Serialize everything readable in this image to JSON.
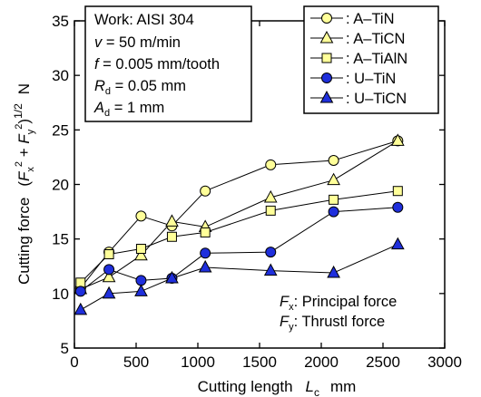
{
  "chart_data": {
    "type": "line",
    "xlabel": {
      "main": "Cutting length",
      "var": "L",
      "sub": "c",
      "unit": "mm"
    },
    "ylabel": {
      "main": "Cutting force",
      "expr_open": "(",
      "F1": "F",
      "sub1": "x",
      "sup1": "2",
      "plus": " + ",
      "F2": "F",
      "sub2": "y",
      "sup2": "2",
      "expr_close": ")",
      "exp": "1/2",
      "unit": "N"
    },
    "xlim": [
      0,
      3000
    ],
    "ylim": [
      5,
      35
    ],
    "xticks": [
      "0",
      "500",
      "1000",
      "1500",
      "2000",
      "2500",
      "3000"
    ],
    "yticks": [
      "5",
      "10",
      "15",
      "20",
      "25",
      "30",
      "35"
    ],
    "grid": false,
    "legend_position": "top-right",
    "conditions": {
      "work": "Work: AISI 304",
      "v_sym": "v",
      "v_val": " = 50 m/min",
      "f_sym": "f",
      "f_val": " = 0.005 mm/tooth",
      "R_sym": "R",
      "R_sub": "d",
      "R_val": " = 0.05 mm",
      "A_sym": "A",
      "A_sub": "d",
      "A_val": " = 1 mm"
    },
    "annotations": {
      "fx_sym": "F",
      "fx_sub": "x",
      "fx_text": ": Principal force",
      "fy_sym": "F",
      "fy_sub": "y",
      "fy_text": ": Thrustl force"
    },
    "series": [
      {
        "name": "A–TiN",
        "legend_text": ": A–TiN",
        "marker": "circle",
        "fill": "#ffff99",
        "points": [
          [
            50,
            10.5
          ],
          [
            280,
            13.8
          ],
          [
            540,
            17.1
          ],
          [
            790,
            16.2
          ],
          [
            1060,
            19.4
          ],
          [
            1590,
            21.8
          ],
          [
            2100,
            22.2
          ],
          [
            2620,
            24.0
          ]
        ]
      },
      {
        "name": "A–TiCN",
        "legend_text": ": A–TiCN",
        "marker": "triangle",
        "fill": "#ffff99",
        "points": [
          [
            50,
            10.4
          ],
          [
            280,
            11.5
          ],
          [
            540,
            13.5
          ],
          [
            790,
            16.6
          ],
          [
            1060,
            16.1
          ],
          [
            1590,
            18.8
          ],
          [
            2100,
            20.4
          ],
          [
            2620,
            24.0
          ]
        ]
      },
      {
        "name": "A–TiAlN",
        "legend_text": ": A–TiAlN",
        "marker": "square",
        "fill": "#ffff99",
        "points": [
          [
            50,
            11.0
          ],
          [
            280,
            13.6
          ],
          [
            540,
            14.1
          ],
          [
            790,
            15.2
          ],
          [
            1060,
            15.6
          ],
          [
            1590,
            17.6
          ],
          [
            2100,
            18.6
          ],
          [
            2620,
            19.4
          ]
        ]
      },
      {
        "name": "U–TiN",
        "legend_text": ": U–TiN",
        "marker": "circle",
        "fill": "#1f2fdc",
        "points": [
          [
            50,
            10.2
          ],
          [
            280,
            12.2
          ],
          [
            540,
            11.2
          ],
          [
            790,
            11.4
          ],
          [
            1060,
            13.7
          ],
          [
            1590,
            13.8
          ],
          [
            2100,
            17.5
          ],
          [
            2620,
            17.9
          ]
        ]
      },
      {
        "name": "U–TiCN",
        "legend_text": ": U–TiCN",
        "marker": "triangle",
        "fill": "#1f2fdc",
        "points": [
          [
            50,
            8.5
          ],
          [
            280,
            10.0
          ],
          [
            540,
            10.2
          ],
          [
            790,
            11.4
          ],
          [
            1060,
            12.4
          ],
          [
            1590,
            12.1
          ],
          [
            2100,
            11.9
          ],
          [
            2620,
            14.5
          ]
        ]
      }
    ]
  }
}
